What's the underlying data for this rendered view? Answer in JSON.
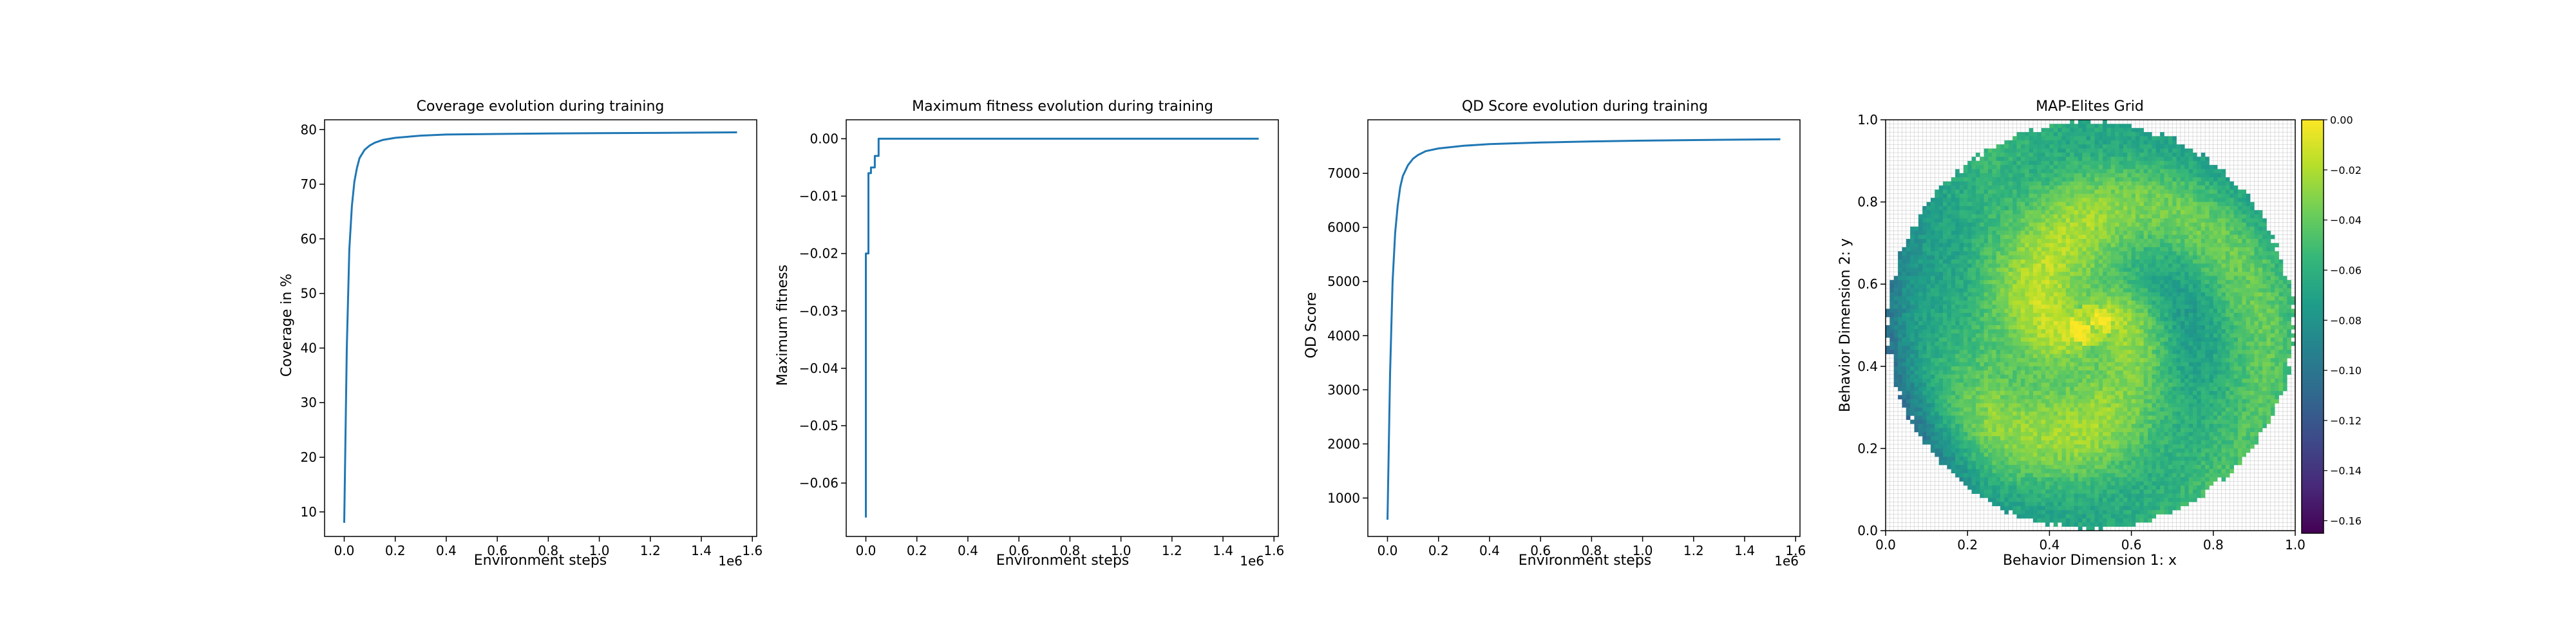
{
  "colors": {
    "line": "#1f77b4",
    "grid_border": "#c0c0c0",
    "viridis": [
      "#440154",
      "#482878",
      "#3e4989",
      "#31688e",
      "#26828e",
      "#1f9e89",
      "#35b779",
      "#6ece58",
      "#b5de2b",
      "#fde725"
    ]
  },
  "chart_data": [
    {
      "type": "line",
      "title": "Coverage evolution during training",
      "xlabel": "Environment steps",
      "ylabel": "Coverage in %",
      "x_offset_label": "1e6",
      "xlim": [
        -0.077,
        1.617
      ],
      "ylim": [
        5.5,
        81.8
      ],
      "xticks": [
        "0.0",
        "0.2",
        "0.4",
        "0.6",
        "0.8",
        "1.0",
        "1.2",
        "1.4",
        "1.6"
      ],
      "yticks": [
        "10",
        "20",
        "30",
        "40",
        "50",
        "60",
        "70",
        "80"
      ],
      "series": [
        {
          "x": [
            0.0,
            0.01,
            0.02,
            0.03,
            0.04,
            0.05,
            0.06,
            0.08,
            0.1,
            0.12,
            0.15,
            0.2,
            0.3,
            0.4,
            0.6,
            0.8,
            1.0,
            1.2,
            1.4,
            1.54
          ],
          "y": [
            8,
            40,
            58,
            66,
            70.5,
            73,
            74.8,
            76.3,
            77.1,
            77.6,
            78.1,
            78.5,
            78.9,
            79.1,
            79.2,
            79.3,
            79.35,
            79.4,
            79.45,
            79.5
          ]
        }
      ]
    },
    {
      "type": "line",
      "title": "Maximum fitness evolution during training",
      "xlabel": "Environment steps",
      "ylabel": "Maximum fitness",
      "x_offset_label": "1e6",
      "xlim": [
        -0.077,
        1.617
      ],
      "ylim": [
        -0.0693,
        0.0033
      ],
      "xticks": [
        "0.0",
        "0.2",
        "0.4",
        "0.6",
        "0.8",
        "1.0",
        "1.2",
        "1.4",
        "1.6"
      ],
      "yticks": [
        "0.00",
        "−0.01",
        "−0.02",
        "−0.03",
        "−0.04",
        "−0.05",
        "−0.06"
      ],
      "series": [
        {
          "x": [
            0.0,
            0.0,
            0.01,
            0.01,
            0.02,
            0.02,
            0.035,
            0.035,
            0.05,
            0.05,
            1.54
          ],
          "y": [
            -0.066,
            -0.02,
            -0.02,
            -0.006,
            -0.006,
            -0.005,
            -0.005,
            -0.003,
            -0.003,
            0.0,
            0.0
          ]
        }
      ]
    },
    {
      "type": "line",
      "title": "QD Score evolution during training",
      "xlabel": "Environment steps",
      "ylabel": "QD Score",
      "x_offset_label": "1e6",
      "xlim": [
        -0.077,
        1.617
      ],
      "ylim": [
        290,
        7990
      ],
      "xticks": [
        "0.0",
        "0.2",
        "0.4",
        "0.6",
        "0.8",
        "1.0",
        "1.2",
        "1.4",
        "1.6"
      ],
      "yticks": [
        "1000",
        "2000",
        "3000",
        "4000",
        "5000",
        "6000",
        "7000"
      ],
      "series": [
        {
          "x": [
            0.0,
            0.01,
            0.02,
            0.03,
            0.04,
            0.05,
            0.06,
            0.08,
            0.1,
            0.12,
            0.15,
            0.2,
            0.3,
            0.4,
            0.6,
            0.8,
            1.0,
            1.2,
            1.4,
            1.54
          ],
          "y": [
            600,
            3300,
            5000,
            5900,
            6400,
            6750,
            6950,
            7150,
            7270,
            7340,
            7410,
            7460,
            7510,
            7540,
            7570,
            7590,
            7605,
            7615,
            7625,
            7630
          ]
        }
      ]
    },
    {
      "type": "heatmap",
      "title": "MAP-Elites Grid",
      "xlabel": "Behavior Dimension 1: x",
      "ylabel": "Behavior Dimension 2: y",
      "xlim": [
        0.0,
        1.0
      ],
      "ylim": [
        0.0,
        1.0
      ],
      "grid_size": 100,
      "xticks": [
        "0.0",
        "0.2",
        "0.4",
        "0.6",
        "0.8",
        "1.0"
      ],
      "yticks": [
        "0.0",
        "0.2",
        "0.4",
        "0.6",
        "0.8",
        "1.0"
      ],
      "colorbar": {
        "range": [
          -0.165,
          0.0
        ],
        "ticks": [
          "0.00",
          "−0.02",
          "−0.04",
          "−0.06",
          "−0.08",
          "−0.10",
          "−0.12",
          "−0.14",
          "−0.16"
        ]
      }
    }
  ]
}
